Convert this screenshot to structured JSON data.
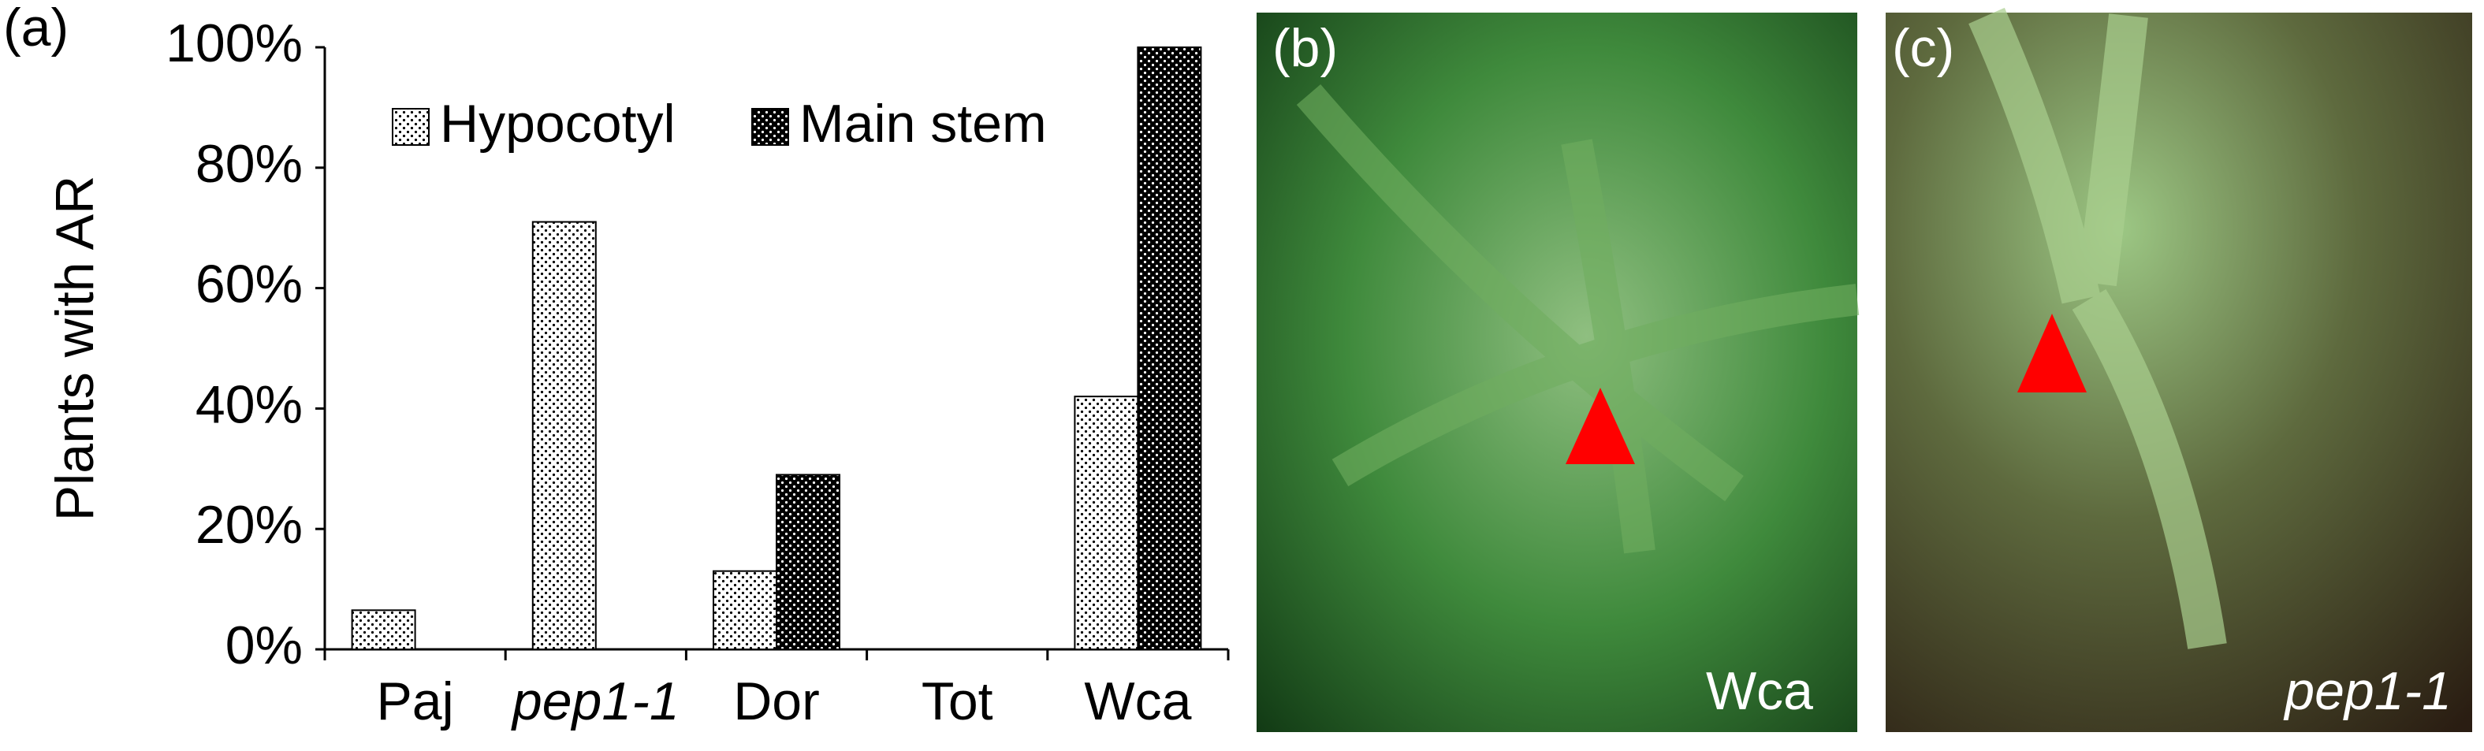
{
  "chart_data": {
    "type": "bar",
    "panel_label": "(a)",
    "y_label": "Plants with AR",
    "categories": [
      "Paj",
      "pep1-1",
      "Dor",
      "Tot",
      "Wca"
    ],
    "series": [
      {
        "name": "Hypocotyl",
        "color": "#ffffff",
        "values": [
          6.5,
          71,
          13,
          0,
          42
        ]
      },
      {
        "name": "Main stem",
        "color": "#000000",
        "values": [
          0,
          0,
          29,
          0,
          100
        ]
      }
    ],
    "ylim": [
      0,
      100
    ],
    "yticks": [
      {
        "value": 0,
        "label": "0%"
      },
      {
        "value": 20,
        "label": "20%"
      },
      {
        "value": 40,
        "label": "40%"
      },
      {
        "value": 60,
        "label": "60%"
      },
      {
        "value": 80,
        "label": "80%"
      },
      {
        "value": 100,
        "label": "100%"
      }
    ]
  },
  "photos": [
    {
      "panel_label": "(b)",
      "caption": "Wca"
    },
    {
      "panel_label": "(c)",
      "caption": "pep1-1"
    }
  ]
}
